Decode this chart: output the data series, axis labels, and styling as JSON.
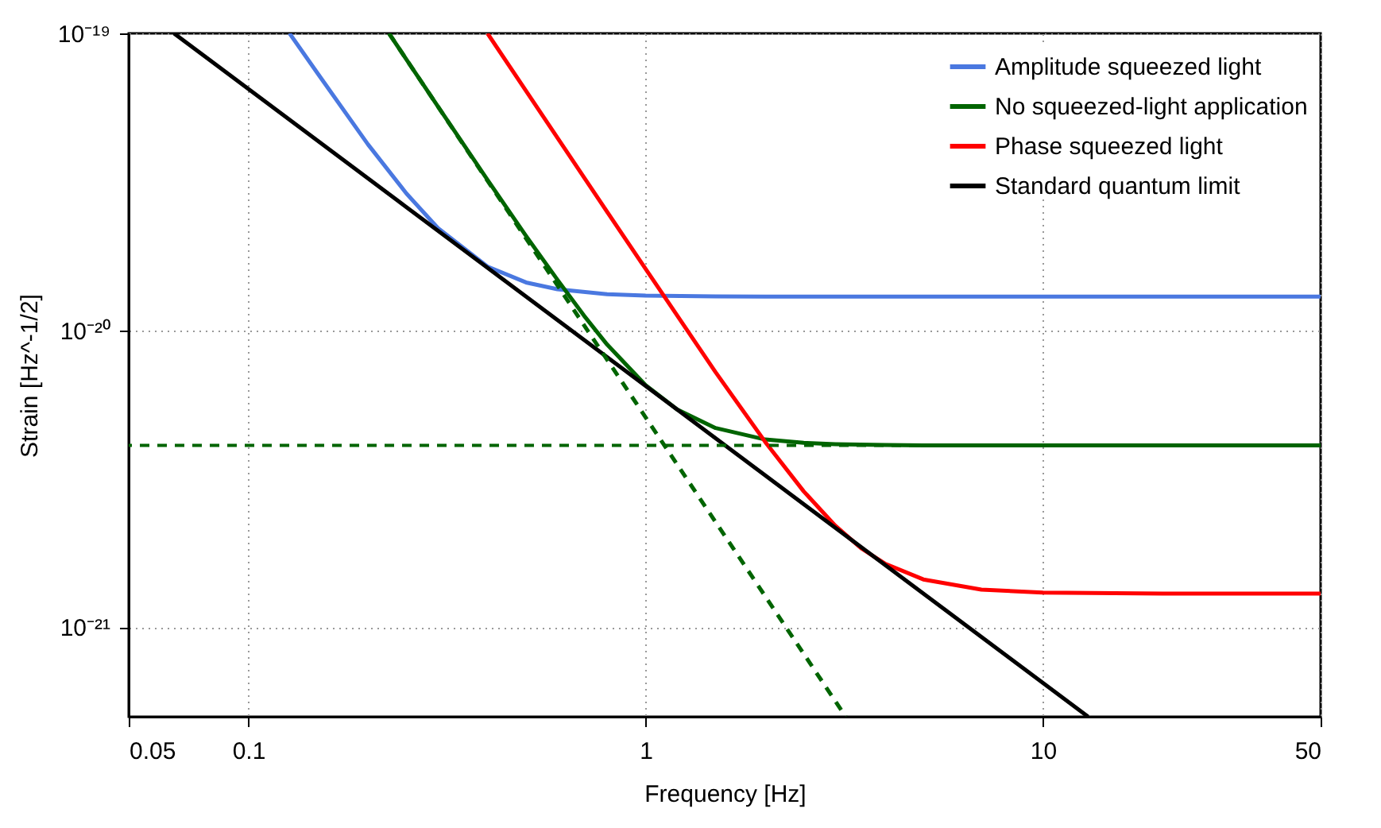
{
  "chart_data": {
    "type": "line",
    "xlabel": "Frequency [Hz]",
    "ylabel": "Strain [Hz^-1/2]",
    "log": "xy",
    "xlim": [
      0.05,
      50
    ],
    "xticks": [
      0.05,
      0.1,
      1,
      10,
      50
    ],
    "ylim": [
      5e-22,
      1e-19
    ],
    "yticks": [
      {
        "value": 1e-21,
        "label": "10⁻²¹"
      },
      {
        "value": 1e-20,
        "label": "10⁻²⁰"
      },
      {
        "value": 1e-19,
        "label": "10⁻¹⁹"
      }
    ],
    "grid": true,
    "legend": "top right",
    "line_style": "solid",
    "marker": "none",
    "series": [
      {
        "name": "Amplitude squeezed light",
        "color": "#4a78e0",
        "x": [
          0.127,
          0.15,
          0.2,
          0.25,
          0.3,
          0.4,
          0.5,
          0.6,
          0.8,
          1,
          1.5,
          2,
          5,
          10,
          50
        ],
        "values": [
          1e-19,
          7.28e-20,
          4.23e-20,
          2.89e-20,
          2.21e-20,
          1.64e-20,
          1.45e-20,
          1.375e-20,
          1.324e-20,
          1.31e-20,
          1.302e-20,
          1.3e-20,
          1.3e-20,
          1.3e-20,
          1.3e-20
        ]
      },
      {
        "name": "No squeezed-light application",
        "color": "#006400",
        "x": [
          0.226,
          0.25,
          0.3,
          0.4,
          0.5,
          0.6,
          0.7,
          0.8,
          1,
          1.2,
          1.5,
          2,
          2.5,
          3,
          4,
          5,
          10,
          50
        ],
        "values": [
          1e-19,
          8.17e-20,
          5.68e-20,
          3.21e-20,
          2.08e-20,
          1.48e-20,
          1.12e-20,
          8.96e-21,
          6.54e-21,
          5.42e-21,
          4.69e-21,
          4.29e-21,
          4.18e-21,
          4.14e-21,
          4.11e-21,
          4.1e-21,
          4.1e-21,
          4.1e-21
        ]
      },
      {
        "name": "Phase squeezed light",
        "color": "#ff0000",
        "x": [
          0.4,
          0.5,
          0.7,
          1,
          1.5,
          2,
          2.5,
          3,
          3.5,
          4,
          5,
          7,
          10,
          20,
          50
        ],
        "values": [
          1e-19,
          6.4e-20,
          3.27e-20,
          1.61e-20,
          7.23e-21,
          4.21e-21,
          2.87e-21,
          2.2e-21,
          1.84e-21,
          1.64e-21,
          1.45e-21,
          1.34e-21,
          1.31e-21,
          1.3e-21,
          1.3e-21
        ]
      },
      {
        "name": "Standard quantum limit",
        "color": "#000000",
        "x": [
          0.065,
          13
        ],
        "values": [
          1e-19,
          5e-22
        ]
      },
      {
        "color": "#006400",
        "line_style": "dashed",
        "x": [
          0.226,
          3.19
        ],
        "values": [
          1e-19,
          5e-22
        ]
      }
    ],
    "ref_lines": [
      {
        "axis": "y",
        "value": 4.1e-21,
        "color": "#006400",
        "line_style": "dashed"
      }
    ]
  }
}
